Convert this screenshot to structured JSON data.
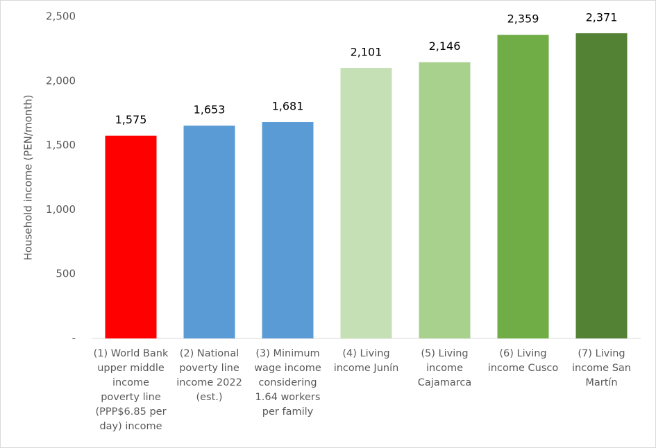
{
  "chart_data": {
    "type": "bar",
    "y_label": "Household income (PEN/month)",
    "categories": [
      "(1) World Bank upper middle income poverty line (PPP$6.85 per day) income",
      "(2) National poverty line income 2022 (est.)",
      "(3) Minimum wage income considering 1.64 workers per family",
      "(4) Living income Junín",
      "(5) Living income Cajamarca",
      "(6) Living income Cusco",
      "(7) Living income San Martín"
    ],
    "values": [
      1575,
      1653,
      1681,
      2101,
      2146,
      2359,
      2371
    ],
    "value_labels": [
      "1,575",
      "1,653",
      "1,681",
      "2,101",
      "2,146",
      "2,359",
      "2,371"
    ],
    "colors": [
      "#ff0000",
      "#5b9bd5",
      "#5b9bd5",
      "#c5e0b4",
      "#a9d18e",
      "#70ad47",
      "#548235"
    ],
    "ylim": [
      0,
      2500
    ],
    "yticks": [
      {
        "value": 0,
        "label": "-"
      },
      500,
      {
        "value": 1000,
        "label": "1,000"
      },
      {
        "value": 1500,
        "label": "1,500"
      },
      {
        "value": 2000,
        "label": "2,000"
      },
      {
        "value": 2500,
        "label": "2,500"
      }
    ]
  }
}
